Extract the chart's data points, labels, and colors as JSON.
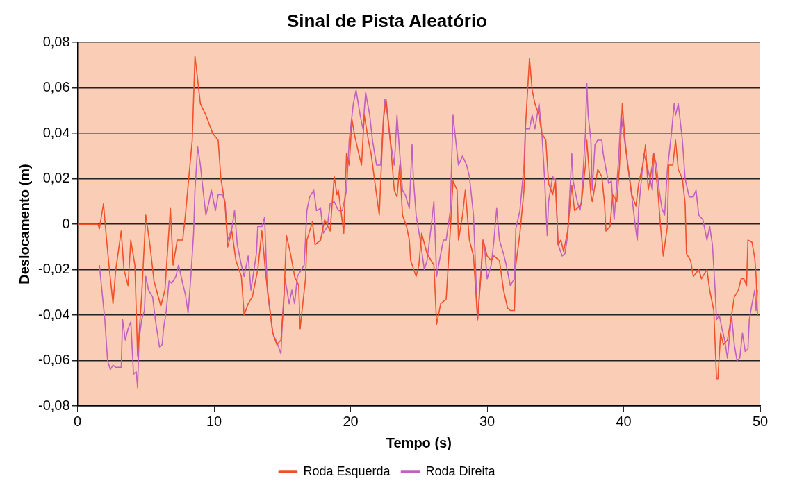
{
  "chart_data": {
    "type": "line",
    "title": "Sinal de Pista Aleatório",
    "xlabel": "Tempo (s)",
    "ylabel": "Deslocamento (m)",
    "xlim": [
      0,
      50
    ],
    "xticks": [
      0,
      10,
      20,
      30,
      40,
      50
    ],
    "ylim": [
      -0.08,
      0.08
    ],
    "yticks": [
      {
        "value": -0.08,
        "label": "-0,08"
      },
      {
        "value": -0.06,
        "label": "-0,06"
      },
      {
        "value": -0.04,
        "label": "-0,04"
      },
      {
        "value": -0.02,
        "label": "-0,02"
      },
      0,
      {
        "value": 0.02,
        "label": "0,02"
      },
      {
        "value": 0.04,
        "label": "0,04"
      },
      {
        "value": 0.06,
        "label": "0,06"
      },
      {
        "value": 0.08,
        "label": "0,08"
      }
    ],
    "grid": "y",
    "legend": "bottom",
    "line_style": "solid",
    "series": [
      {
        "name": "Roda Esquerda",
        "color": "#f0502a",
        "x": [
          0,
          1.5,
          1.6,
          1.9,
          2.1,
          2.3,
          2.6,
          2.8,
          3.2,
          3.4,
          3.7,
          3.9,
          4.2,
          4.4,
          4.7,
          5.0,
          5.3,
          5.6,
          6.1,
          6.4,
          6.8,
          7.0,
          7.3,
          7.7,
          7.9,
          8.4,
          8.6,
          9.0,
          9.4,
          9.9,
          10.3,
          10.5,
          10.8,
          11.0,
          11.3,
          11.6,
          12.0,
          12.2,
          12.5,
          12.8,
          13.2,
          13.5,
          13.8,
          14.3,
          14.6,
          14.9,
          15.1,
          15.3,
          15.6,
          15.9,
          16.2,
          16.3,
          16.7,
          16.8,
          17.2,
          17.4,
          17.8,
          18.1,
          18.5,
          18.8,
          19.0,
          19.1,
          19.5,
          19.7,
          19.9,
          20.1,
          20.3,
          20.6,
          20.8,
          21.0,
          21.3,
          21.5,
          21.9,
          22.1,
          22.4,
          22.6,
          22.9,
          23.2,
          23.4,
          23.6,
          23.8,
          24.1,
          24.3,
          24.4,
          24.8,
          25.0,
          25.2,
          25.6,
          26.1,
          26.3,
          26.6,
          27.0,
          27.3,
          27.5,
          27.8,
          27.9,
          28.2,
          28.4,
          28.7,
          29.0,
          29.3,
          29.6,
          29.7,
          30.0,
          30.3,
          30.5,
          30.9,
          31.2,
          31.5,
          31.7,
          32.0,
          32.1,
          32.4,
          32.7,
          32.8,
          33.1,
          33.3,
          33.5,
          33.8,
          34.0,
          34.3,
          34.5,
          34.8,
          35.0,
          35.2,
          35.4,
          35.6,
          35.9,
          36.2,
          36.4,
          36.6,
          36.9,
          37.2,
          37.3,
          37.6,
          37.7,
          37.9,
          38.1,
          38.4,
          38.6,
          38.7,
          39.0,
          39.2,
          39.5,
          39.7,
          39.9,
          40.1,
          40.3,
          40.6,
          40.9,
          41.1,
          41.4,
          41.6,
          41.8,
          42.1,
          42.2,
          42.5,
          42.7,
          42.9,
          43.2,
          43.3,
          43.6,
          43.8,
          44.0,
          44.3,
          44.5,
          44.6,
          44.9,
          45.1,
          45.5,
          45.7,
          46.1,
          46.3,
          46.6,
          46.8,
          46.9,
          47.1,
          47.3,
          47.6,
          47.9,
          48.1,
          48.4,
          48.6,
          48.8,
          49.0,
          49.1,
          49.4,
          49.6,
          49.7,
          49.8
        ],
        "values": [
          0,
          0,
          -0.002,
          0.009,
          -0.005,
          -0.018,
          -0.035,
          -0.02,
          -0.003,
          -0.02,
          -0.027,
          -0.007,
          -0.018,
          -0.058,
          -0.031,
          0.004,
          -0.009,
          -0.025,
          -0.036,
          -0.029,
          0.007,
          -0.018,
          -0.007,
          -0.007,
          0.004,
          0.037,
          0.074,
          0.053,
          0.048,
          0.04,
          0.037,
          0.02,
          0.009,
          -0.01,
          -0.003,
          -0.016,
          -0.023,
          -0.04,
          -0.035,
          -0.032,
          -0.02,
          -0.003,
          -0.023,
          -0.048,
          -0.053,
          -0.051,
          -0.035,
          -0.005,
          -0.013,
          -0.023,
          -0.027,
          -0.046,
          -0.024,
          -0.007,
          0.001,
          -0.009,
          -0.007,
          0.002,
          -0.003,
          0.021,
          0.013,
          0.015,
          -0.004,
          0.031,
          0.026,
          0.046,
          0.039,
          0.031,
          0.026,
          0.048,
          0.037,
          0.031,
          0.013,
          0.004,
          0.046,
          0.055,
          0.037,
          0.015,
          0.012,
          0.026,
          0.004,
          -0.001,
          -0.007,
          -0.016,
          -0.023,
          -0.018,
          -0.004,
          -0.013,
          -0.018,
          -0.044,
          -0.035,
          -0.033,
          -0.003,
          0.019,
          0.015,
          -0.007,
          0.004,
          0.015,
          -0.007,
          -0.014,
          -0.042,
          -0.018,
          -0.007,
          -0.014,
          -0.016,
          -0.014,
          -0.016,
          -0.029,
          -0.037,
          -0.038,
          -0.038,
          -0.018,
          -0.004,
          0.015,
          0.042,
          0.073,
          0.059,
          0.053,
          0.048,
          0.04,
          0.037,
          0.018,
          0.013,
          0.02,
          -0.009,
          -0.007,
          -0.012,
          -0.003,
          0.017,
          0.006,
          0.007,
          0.009,
          0.026,
          0.037,
          0.013,
          0.01,
          0.017,
          0.024,
          0.021,
          0.009,
          -0.003,
          -0.001,
          0.013,
          0.01,
          0.026,
          0.053,
          0.037,
          0.026,
          0.013,
          0.008,
          0.018,
          0.026,
          0.035,
          0.015,
          0.026,
          0.031,
          0.015,
          -0.001,
          -0.014,
          -0.001,
          0.026,
          0.026,
          0.037,
          0.024,
          0.02,
          0.009,
          -0.013,
          -0.016,
          -0.023,
          -0.02,
          -0.024,
          -0.02,
          -0.029,
          -0.038,
          -0.068,
          -0.068,
          -0.048,
          -0.053,
          -0.051,
          -0.04,
          -0.032,
          -0.029,
          -0.024,
          -0.024,
          -0.027,
          -0.007,
          -0.008,
          -0.015,
          -0.023,
          -0.04
        ]
      },
      {
        "name": "Roda Direita",
        "color": "#c060c0",
        "x": [
          1.6,
          2.0,
          2.2,
          2.4,
          2.6,
          2.8,
          3.2,
          3.3,
          3.5,
          3.7,
          3.9,
          4.1,
          4.3,
          4.4,
          4.5,
          4.7,
          4.9,
          5.0,
          5.2,
          5.5,
          5.7,
          6.0,
          6.2,
          6.3,
          6.5,
          6.7,
          6.9,
          7.2,
          7.4,
          7.7,
          7.9,
          8.1,
          8.3,
          8.5,
          8.6,
          8.8,
          9.0,
          9.1,
          9.4,
          9.6,
          9.8,
          10.1,
          10.3,
          10.6,
          10.8,
          11.0,
          11.3,
          11.5,
          11.7,
          12.0,
          12.2,
          12.5,
          12.7,
          13.1,
          13.2,
          13.5,
          13.7,
          13.9,
          14.3,
          14.6,
          14.9,
          15.0,
          15.2,
          15.5,
          15.7,
          15.9,
          16.1,
          16.2,
          16.6,
          16.8,
          17.0,
          17.3,
          17.5,
          17.8,
          18.0,
          18.3,
          18.5,
          18.8,
          19.1,
          19.4,
          19.7,
          19.9,
          20.2,
          20.4,
          20.7,
          20.9,
          21.1,
          21.4,
          21.6,
          21.9,
          22.2,
          22.5,
          22.7,
          22.9,
          23.2,
          23.4,
          23.6,
          23.8,
          24.0,
          24.3,
          24.5,
          24.6,
          24.8,
          25.1,
          25.4,
          25.6,
          25.9,
          26.1,
          26.3,
          26.6,
          26.8,
          27.0,
          27.3,
          27.5,
          27.7,
          27.9,
          28.2,
          28.5,
          28.7,
          29.0,
          29.3,
          29.5,
          29.7,
          29.8,
          30.0,
          30.3,
          30.5,
          30.7,
          30.9,
          31.2,
          31.4,
          31.7,
          32.0,
          32.1,
          32.4,
          32.7,
          32.8,
          33.1,
          33.3,
          33.5,
          33.8,
          34.0,
          34.2,
          34.4,
          34.5,
          34.8,
          35.0,
          35.2,
          35.5,
          35.7,
          35.9,
          36.2,
          36.3,
          36.6,
          36.8,
          36.9,
          37.2,
          37.3,
          37.4,
          37.6,
          37.7,
          37.9,
          38.1,
          38.4,
          38.5,
          38.9,
          39.1,
          39.3,
          39.6,
          39.8,
          40.0,
          40.3,
          40.6,
          40.9,
          41.0,
          41.1,
          41.4,
          41.5,
          41.9,
          42.1,
          42.2,
          42.4,
          42.6,
          42.8,
          43.0,
          43.2,
          43.5,
          43.7,
          43.8,
          44.0,
          44.3,
          44.5,
          44.8,
          45.1,
          45.3,
          45.5,
          45.8,
          46.1,
          46.3,
          46.5,
          46.7,
          46.8,
          47.0,
          47.2,
          47.4,
          47.6,
          47.9,
          48.1,
          48.3,
          48.5,
          48.7,
          48.9,
          49.1,
          49.2,
          49.4,
          49.6,
          49.7,
          49.8
        ],
        "values": [
          -0.018,
          -0.042,
          -0.06,
          -0.064,
          -0.062,
          -0.063,
          -0.063,
          -0.042,
          -0.051,
          -0.046,
          -0.043,
          -0.066,
          -0.065,
          -0.072,
          -0.051,
          -0.042,
          -0.038,
          -0.023,
          -0.029,
          -0.032,
          -0.042,
          -0.054,
          -0.053,
          -0.046,
          -0.038,
          -0.025,
          -0.026,
          -0.023,
          -0.018,
          -0.026,
          -0.031,
          -0.039,
          -0.023,
          -0.004,
          0.015,
          0.034,
          0.026,
          0.02,
          0.004,
          0.009,
          0.015,
          0.006,
          0.013,
          0.013,
          0.01,
          -0.007,
          -0.002,
          0.006,
          -0.009,
          -0.018,
          -0.023,
          -0.014,
          -0.029,
          -0.013,
          -0.001,
          -0.001,
          0.003,
          -0.029,
          -0.048,
          -0.052,
          -0.057,
          -0.042,
          -0.024,
          -0.035,
          -0.029,
          -0.035,
          -0.023,
          -0.022,
          -0.018,
          0.006,
          0.012,
          0.015,
          0.006,
          0.007,
          -0.004,
          -0.001,
          0.009,
          0.01,
          0.006,
          0.006,
          0.015,
          0.037,
          0.053,
          0.059,
          0.048,
          0.042,
          0.058,
          0.048,
          0.037,
          0.026,
          0.026,
          0.055,
          0.048,
          0.037,
          0.026,
          0.048,
          0.031,
          0.015,
          0.013,
          0.007,
          0.035,
          0.02,
          0.004,
          -0.007,
          -0.02,
          -0.016,
          -0.001,
          0.01,
          -0.023,
          -0.013,
          -0.007,
          -0.007,
          0.006,
          0.048,
          0.037,
          0.026,
          0.03,
          0.026,
          0.021,
          0.004,
          -0.042,
          -0.025,
          -0.007,
          -0.009,
          -0.024,
          -0.018,
          -0.007,
          0.007,
          -0.007,
          -0.013,
          -0.018,
          -0.027,
          -0.024,
          -0.002,
          0.006,
          0.026,
          0.042,
          0.042,
          0.048,
          0.042,
          0.053,
          0.041,
          0.021,
          -0.005,
          0.01,
          0.021,
          0.019,
          -0.009,
          -0.014,
          -0.013,
          -0.005,
          0.031,
          0.019,
          0.01,
          0.006,
          0.01,
          0.04,
          0.062,
          0.048,
          0.037,
          0.015,
          0.035,
          0.037,
          0.037,
          0.031,
          0.018,
          0.019,
          0.002,
          0.026,
          0.048,
          0.04,
          0.026,
          0.012,
          -0.003,
          -0.007,
          0.007,
          0.026,
          0.031,
          0.021,
          0.015,
          0.031,
          0.026,
          0.015,
          0.007,
          0.004,
          0.024,
          0.04,
          0.053,
          0.048,
          0.053,
          0.037,
          0.02,
          0.012,
          0.012,
          0.015,
          0.004,
          0.002,
          -0.007,
          -0.001,
          -0.009,
          -0.029,
          -0.042,
          -0.04,
          -0.046,
          -0.051,
          -0.059,
          -0.04,
          -0.053,
          -0.06,
          -0.059,
          -0.048,
          -0.056,
          -0.055,
          -0.042,
          -0.035,
          -0.029,
          -0.038,
          -0.029
        ]
      }
    ]
  }
}
